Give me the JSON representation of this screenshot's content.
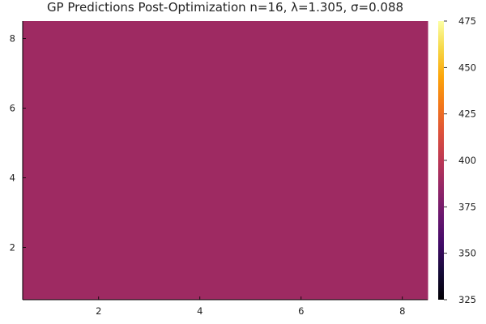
{
  "chart_data": {
    "type": "heatmap",
    "title": "GP Predictions Post-Optimization n=16, λ=1.305, σ=0.088",
    "xlabel": "",
    "ylabel": "",
    "xlim": [
      0.5,
      8.5
    ],
    "ylim": [
      0.5,
      8.5
    ],
    "x_ticks": [
      2,
      4,
      6,
      8
    ],
    "y_ticks": [
      2,
      4,
      6,
      8
    ],
    "grid": false,
    "colormap": "inferno",
    "colorbar": {
      "range": [
        325,
        475
      ],
      "ticks": [
        325,
        350,
        375,
        400,
        425,
        450,
        475
      ]
    },
    "grid_size": [
      8,
      8
    ],
    "z_uniform_value": 392,
    "fill_color": "#9e2a62"
  }
}
